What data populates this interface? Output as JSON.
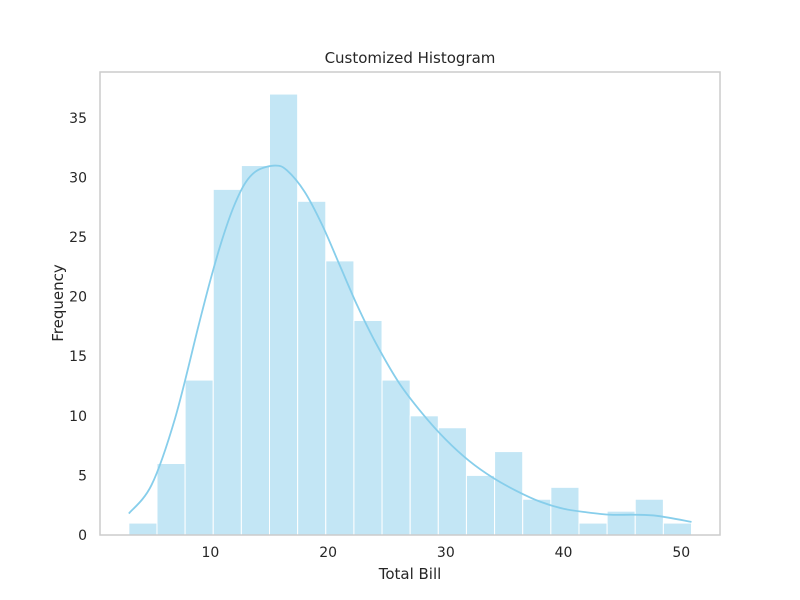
{
  "chart_data": {
    "type": "bar",
    "title": "Customized Histogram",
    "xlabel": "Total Bill",
    "ylabel": "Frequency",
    "xlim": [
      0.62,
      53.29
    ],
    "ylim": [
      0,
      38.85
    ],
    "xticks": [
      10,
      20,
      30,
      40,
      50
    ],
    "yticks": [
      0,
      5,
      10,
      15,
      20,
      25,
      30,
      35
    ],
    "grid": false,
    "bar_color": "#87CEEB",
    "bar_opacity": 0.5,
    "bar_edge_color": "#ffffff",
    "kde_color": "#87CEEB",
    "bin_edges": [
      3.07,
      5.46,
      7.85,
      10.24,
      12.63,
      15.02,
      17.41,
      19.8,
      22.19,
      24.58,
      26.97,
      29.36,
      31.75,
      34.14,
      36.53,
      38.92,
      41.31,
      43.7,
      46.09,
      48.48,
      50.87
    ],
    "values": [
      1,
      6,
      13,
      29,
      31,
      37,
      28,
      23,
      18,
      13,
      10,
      9,
      5,
      7,
      3,
      4,
      1,
      2,
      3,
      1
    ],
    "kde": {
      "x": [
        3.07,
        5.0,
        7.0,
        9.0,
        10.0,
        11.0,
        12.0,
        13.0,
        14.0,
        15.5,
        16.5,
        18.0,
        19.5,
        21.0,
        22.5,
        24.0,
        26.0,
        28.0,
        30.0,
        32.0,
        34.0,
        36.0,
        38.0,
        40.0,
        42.0,
        44.0,
        46.0,
        48.0,
        50.87
      ],
      "y": [
        1.8,
        4.2,
        9.8,
        17.6,
        21.4,
        24.8,
        27.6,
        29.6,
        30.6,
        31.0,
        30.6,
        28.8,
        26.0,
        22.6,
        19.2,
        16.2,
        12.8,
        10.2,
        8.0,
        6.2,
        4.8,
        3.7,
        2.8,
        2.2,
        1.9,
        1.7,
        1.7,
        1.6,
        1.1
      ]
    }
  }
}
